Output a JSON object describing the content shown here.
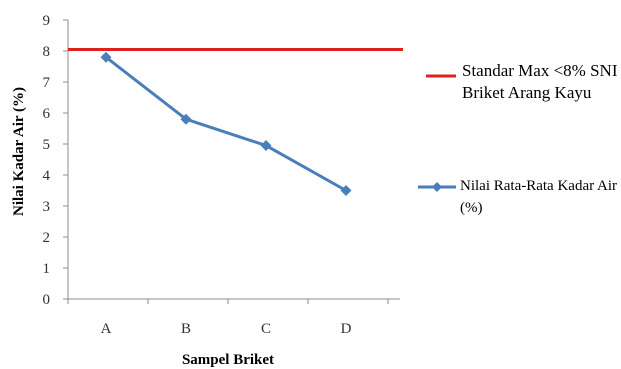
{
  "chart_data": {
    "type": "line",
    "categories": [
      "A",
      "B",
      "C",
      "D"
    ],
    "xlabel": "Sampel Briket",
    "ylabel": "Nilai Kadar Air (%)",
    "ylim": [
      0,
      9
    ],
    "yticks": [
      0,
      1,
      2,
      3,
      4,
      5,
      6,
      7,
      8,
      9
    ],
    "grid": false,
    "legend_position": "right",
    "series": [
      {
        "name": "Nilai Rata-Rata Kadar Air (%)",
        "values": [
          7.8,
          5.8,
          4.95,
          3.5
        ],
        "color": "#4a7ebb",
        "marker": "diamond"
      },
      {
        "name": "Standar Max <8% SNI Briket Arang Kayu",
        "values": [
          8.05,
          8.05,
          8.05,
          8.05
        ],
        "color": "#e0201b",
        "marker": "none",
        "style": "reference-line"
      }
    ]
  }
}
